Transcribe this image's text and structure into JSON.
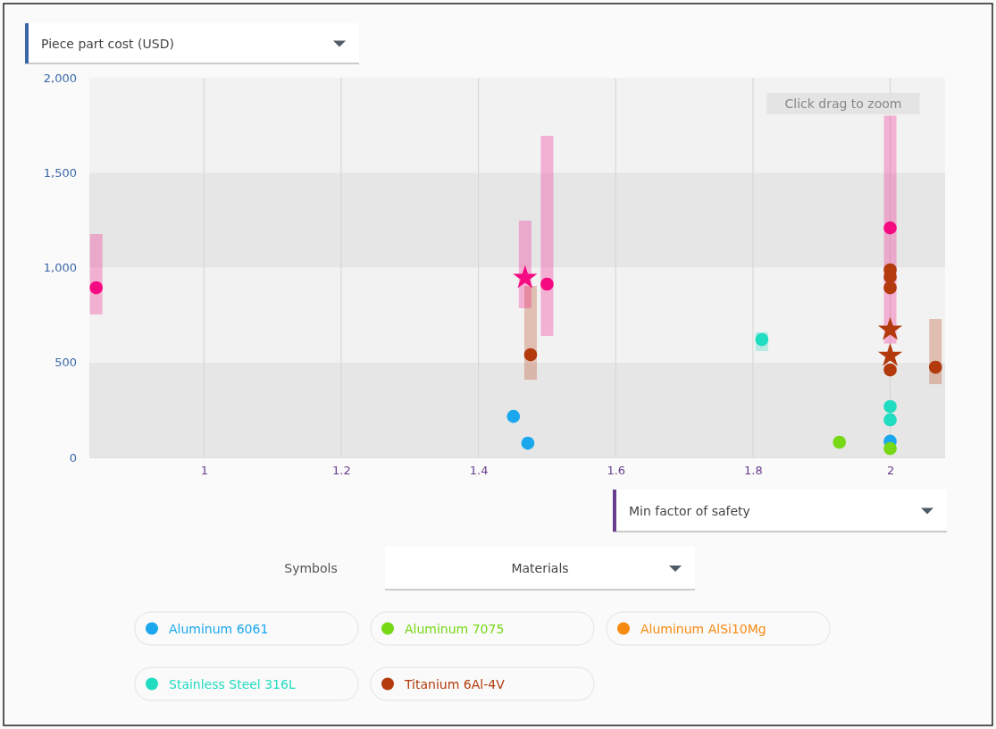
{
  "chart_data": {
    "type": "scatter",
    "ylabel": "Piece part cost (USD)",
    "xlabel": "Min factor of safety",
    "xlim": [
      0.833,
      2.08
    ],
    "ylim": [
      0,
      2000
    ],
    "xticks": [
      1,
      1.2,
      1.4,
      1.6,
      1.8,
      2
    ],
    "yticks": [
      0,
      500,
      {
        "value": 1000,
        "label": "1,000"
      },
      {
        "value": 1500,
        "label": "1,500"
      },
      {
        "value": 2000,
        "label": "2,000"
      }
    ],
    "grid": "x",
    "legend": "bottom",
    "marker": "circle",
    "annotations": [
      "Click drag to zoom",
      "Symbols",
      "Materials"
    ],
    "series": [
      {
        "name": "Aluminum 6061",
        "color": "#1aa7ee",
        "x": [
          1.451,
          1.472,
          2.0
        ],
        "values": [
          216,
          75,
          85
        ]
      },
      {
        "name": "Aluminum 7075",
        "color": "#77d916",
        "x": [
          1.926,
          2.0
        ],
        "values": [
          80,
          47
        ]
      },
      {
        "name": "Aluminum AlSi10Mg",
        "color": "#f78a10"
      },
      {
        "color": "#f50a82",
        "x": [
          0.843,
          1.5,
          2.0
        ],
        "values": [
          894,
          913,
          1209
        ],
        "errors": [
          [
            753,
            1176
          ],
          [
            640,
            1694
          ],
          [
            600,
            1800
          ]
        ]
      },
      {
        "name": "Stainless Steel 316L",
        "color": "#20dcc0",
        "x": [
          1.813,
          2.0,
          2.0
        ],
        "values": [
          621,
          268,
          198
        ],
        "errors": [
          [
            560,
            660
          ],
          null,
          null
        ]
      },
      {
        "name": "Titanium 6Al-4V",
        "color": "#b23a0c",
        "x": [
          1.476,
          2.0,
          2.0,
          2.0,
          2.0,
          2.066
        ],
        "values": [
          541,
          988,
          951,
          894,
          461,
          475
        ],
        "errors": [
          [
            409,
            904
          ],
          null,
          null,
          null,
          null,
          [
            386,
            729
          ]
        ]
      },
      {
        "color": "#f50a82",
        "marker": "star",
        "x": [
          1.468
        ],
        "values": [
          946
        ],
        "errors": [
          [
            786,
            1247
          ]
        ]
      },
      {
        "color": "#b23a0c",
        "marker": "star",
        "x": [
          2.0,
          2.0
        ],
        "values": [
          673,
          536
        ]
      }
    ]
  }
}
